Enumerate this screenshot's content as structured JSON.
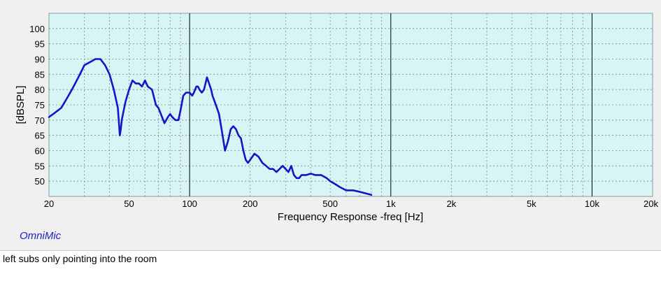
{
  "brand": "OmniMic",
  "caption": "left subs only pointing into the room",
  "colors": {
    "plot_background": "#d8f5f5",
    "window_background": "#f0f0f0",
    "line": "#1414c8",
    "grid": "#7a8a8a",
    "decade_line": "#000000",
    "brand": "#2020c0"
  },
  "chart_data": {
    "type": "line",
    "xlabel": "Frequency Response -freq [Hz]",
    "ylabel": "[dBSPL]",
    "xscale": "log",
    "xlim": [
      20,
      20000
    ],
    "ylim": [
      45,
      105
    ],
    "grid": true,
    "x_ticks": [
      {
        "value": 20,
        "label": "20"
      },
      {
        "value": 50,
        "label": "50"
      },
      {
        "value": 100,
        "label": "100"
      },
      {
        "value": 200,
        "label": "200"
      },
      {
        "value": 500,
        "label": "500"
      },
      {
        "value": 1000,
        "label": "1k"
      },
      {
        "value": 2000,
        "label": "2k"
      },
      {
        "value": 5000,
        "label": "5k"
      },
      {
        "value": 10000,
        "label": "10k"
      },
      {
        "value": 20000,
        "label": "20k"
      }
    ],
    "y_ticks": [
      50,
      55,
      60,
      65,
      70,
      75,
      80,
      85,
      90,
      95,
      100
    ],
    "series": [
      {
        "x": [
          20,
          21,
          22,
          23,
          24,
          25,
          26,
          27,
          28,
          29,
          30,
          32,
          34,
          36,
          38,
          40,
          42,
          44,
          45,
          45.5,
          46,
          47,
          48,
          50,
          52,
          54,
          56,
          58,
          60,
          62,
          65,
          68,
          70,
          72,
          75,
          78,
          80,
          82,
          85,
          88,
          90,
          93,
          96,
          100,
          103,
          105,
          108,
          110,
          112,
          115,
          118,
          120,
          122,
          125,
          128,
          130,
          135,
          140,
          145,
          150,
          155,
          160,
          165,
          170,
          175,
          180,
          185,
          190,
          195,
          200,
          210,
          220,
          230,
          240,
          250,
          260,
          270,
          280,
          290,
          300,
          310,
          320,
          330,
          340,
          350,
          360,
          380,
          400,
          420,
          450,
          480,
          500,
          530,
          560,
          600,
          650,
          700,
          750,
          800
        ],
        "y": [
          71,
          72,
          73,
          74,
          76,
          78,
          80,
          82,
          84,
          86,
          88,
          89,
          90,
          90,
          88,
          85,
          80,
          74,
          65,
          67,
          70,
          73,
          76,
          80,
          83,
          82,
          82,
          81,
          83,
          81,
          80,
          75,
          74,
          72,
          69,
          71,
          72,
          71,
          70,
          70,
          73,
          78,
          79,
          79,
          78,
          79,
          81,
          81,
          80,
          79,
          80,
          82,
          84,
          82,
          80,
          78,
          75,
          72,
          66,
          60,
          63,
          67,
          68,
          67,
          65,
          64,
          60,
          57,
          56,
          57,
          59,
          58,
          56,
          55,
          54,
          54,
          53,
          54,
          55,
          54,
          53,
          55,
          52,
          51,
          51,
          52,
          52,
          52.5,
          52,
          52,
          51,
          50,
          49,
          48,
          47,
          47,
          46.5,
          46,
          45.5
        ]
      }
    ]
  }
}
